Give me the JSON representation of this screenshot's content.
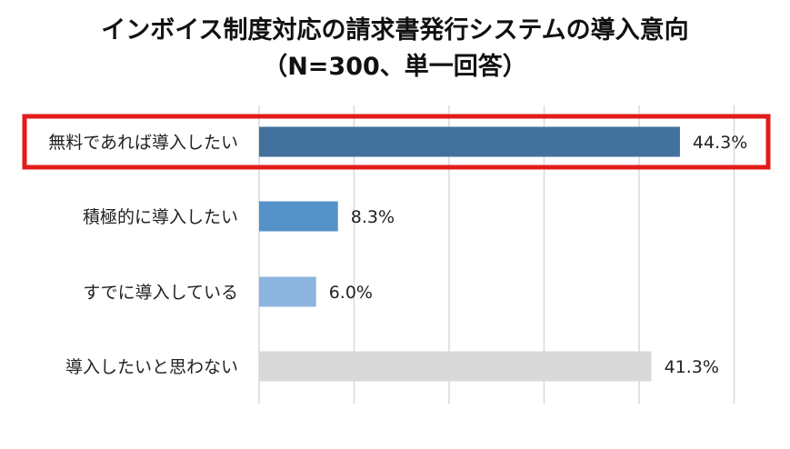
{
  "chart_data": {
    "type": "bar",
    "orientation": "horizontal",
    "title": "インボイス制度対応の請求書発行システムの導入意向",
    "subtitle": "（N=300、単一回答）",
    "categories": [
      "無料であれば導入したい",
      "積極的に導入したい",
      "すでに導入している",
      "導入したいと思わない"
    ],
    "values": [
      44.3,
      8.3,
      6.0,
      41.3
    ],
    "value_labels": [
      "44.3%",
      "8.3%",
      "6.0%",
      "41.3%"
    ],
    "unit": "%",
    "xlim": [
      0,
      50
    ],
    "grid": true,
    "legend": "none",
    "highlighted_category": "無料であれば導入したい"
  },
  "colors": {
    "bars": [
      "#41719c",
      "#5592c8",
      "#8db3df",
      "#d9d9d9"
    ],
    "highlight_box": "#e31b1b",
    "gridline": "#d9d9d9"
  }
}
